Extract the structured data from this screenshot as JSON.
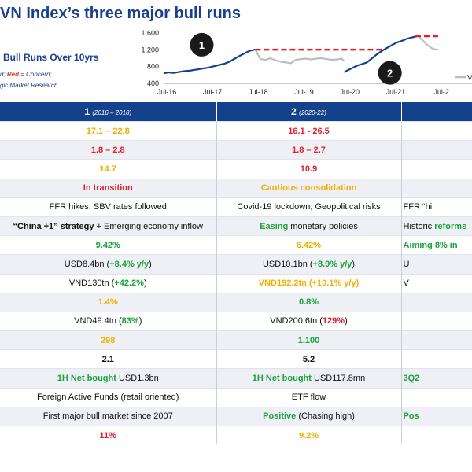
{
  "header": {
    "title": "VN Index’s three major bull runs",
    "subtitle": "Bull Runs Over 10yrs",
    "legend_note_1": "d; ",
    "legend_note_red": "Red",
    "legend_note_2": " = Concern;",
    "source": "gic Market Research"
  },
  "colors": {
    "header_bg": "#13418c",
    "series_vn": "#13418c",
    "series_other": "#bdbdbd",
    "peak_line": "#e0202a"
  },
  "chart_data": {
    "type": "line",
    "x_ticks": [
      "Jul-16",
      "Jul-17",
      "Jul-18",
      "Jul-19",
      "Jul-20",
      "Jul-21",
      "Jul-2"
    ],
    "y_ticks": [
      "1,600",
      "1,200",
      "800",
      "400"
    ],
    "ylim": [
      400,
      1600
    ],
    "series": [
      {
        "name": "",
        "role": "primary",
        "points": [
          [
            0,
            640
          ],
          [
            0.1,
            660
          ],
          [
            0.2,
            650
          ],
          [
            0.3,
            670
          ],
          [
            0.4,
            690
          ],
          [
            0.5,
            700
          ],
          [
            0.6,
            720
          ],
          [
            0.7,
            740
          ],
          [
            0.8,
            760
          ],
          [
            0.9,
            780
          ],
          [
            1.0,
            810
          ],
          [
            1.1,
            840
          ],
          [
            1.2,
            870
          ],
          [
            1.3,
            920
          ],
          [
            1.4,
            990
          ],
          [
            1.5,
            1060
          ],
          [
            1.6,
            1120
          ],
          [
            1.7,
            1180
          ],
          [
            1.8,
            1204
          ]
        ]
      },
      {
        "name": "",
        "role": "secondary",
        "points": [
          [
            1.8,
            1204
          ],
          [
            1.85,
            1100
          ],
          [
            1.9,
            980
          ],
          [
            2.0,
            960
          ],
          [
            2.1,
            1000
          ],
          [
            2.2,
            950
          ],
          [
            2.3,
            920
          ],
          [
            2.4,
            900
          ],
          [
            2.5,
            880
          ],
          [
            2.6,
            960
          ],
          [
            2.7,
            980
          ],
          [
            2.8,
            990
          ],
          [
            2.9,
            970
          ],
          [
            3.0,
            990
          ],
          [
            3.1,
            1000
          ],
          [
            3.2,
            980
          ],
          [
            3.3,
            960
          ],
          [
            3.4,
            970
          ],
          [
            3.5,
            990
          ],
          [
            3.55,
            930
          ]
        ]
      },
      {
        "name": "",
        "role": "primary",
        "points": [
          [
            3.55,
            660
          ],
          [
            3.6,
            700
          ],
          [
            3.7,
            760
          ],
          [
            3.8,
            820
          ],
          [
            3.9,
            860
          ],
          [
            4.0,
            900
          ],
          [
            4.1,
            1000
          ],
          [
            4.2,
            1100
          ],
          [
            4.3,
            1180
          ],
          [
            4.4,
            1250
          ],
          [
            4.5,
            1320
          ],
          [
            4.6,
            1380
          ],
          [
            4.7,
            1420
          ],
          [
            4.8,
            1470
          ],
          [
            4.9,
            1500
          ],
          [
            5.0,
            1530
          ]
        ]
      },
      {
        "name": "",
        "role": "secondary",
        "points": [
          [
            5.0,
            1530
          ],
          [
            5.1,
            1420
          ],
          [
            5.2,
            1300
          ],
          [
            5.3,
            1220
          ],
          [
            5.4,
            1200
          ]
        ]
      },
      {
        "name": "",
        "role": "peak",
        "points": [
          [
            1.8,
            1204
          ],
          [
            4.3,
            1204
          ]
        ]
      },
      {
        "name": "",
        "role": "peak",
        "points": [
          [
            4.95,
            1525
          ],
          [
            5.4,
            1525
          ]
        ]
      }
    ],
    "markers": [
      {
        "label": "1",
        "x": 0.75,
        "y": 1320
      },
      {
        "label": "2",
        "x": 4.45,
        "y": 650
      }
    ],
    "legend_label": "V"
  },
  "table": {
    "col1_title": "1",
    "col1_range": "(2016 – 2018)",
    "col2_title": "2",
    "col2_range": "(2020-22)",
    "rows": [
      {
        "c1": [
          [
            "17.1 – 22.8",
            "y"
          ]
        ],
        "c2": [
          [
            "16.1 - 26.5",
            "r"
          ]
        ],
        "c3": []
      },
      {
        "c1": [
          [
            "1.8 – 2.8",
            "r"
          ]
        ],
        "c2": [
          [
            "1.8 – 2.7",
            "r"
          ]
        ],
        "c3": []
      },
      {
        "c1": [
          [
            "14.7",
            "y"
          ]
        ],
        "c2": [
          [
            "10.9",
            "r"
          ]
        ],
        "c3": []
      },
      {
        "c1": [
          [
            "In transition",
            "r"
          ]
        ],
        "c2": [
          [
            "Cautious consolidation",
            "y"
          ]
        ],
        "c3": []
      },
      {
        "c1": [
          [
            "FFR hikes; SBV rates followed",
            ""
          ]
        ],
        "c2": [
          [
            "Covid-19 lockdown; Geopolitical risks",
            ""
          ]
        ],
        "c3": [
          [
            "FFR “hi",
            ""
          ]
        ]
      },
      {
        "c1": [
          [
            "“China +1” strategy",
            "b"
          ],
          [
            " + Emerging economy inflow",
            ""
          ]
        ],
        "c2": [
          [
            "Easing",
            "g"
          ],
          [
            " monetary policies",
            ""
          ]
        ],
        "c3": [
          [
            "Historic ",
            ""
          ],
          [
            "reforms",
            "g"
          ]
        ]
      },
      {
        "c1": [
          [
            "9.42%",
            "g"
          ]
        ],
        "c2": [
          [
            "6.42%",
            "y"
          ]
        ],
        "c3": [
          [
            "Aiming 8% in",
            "g"
          ]
        ]
      },
      {
        "c1": [
          [
            "USD8.4bn (",
            ""
          ],
          [
            "+8.4% y/y",
            "g"
          ],
          [
            ")",
            ""
          ]
        ],
        "c2": [
          [
            "USD10.1bn (",
            ""
          ],
          [
            "+8.9% y/y",
            "g"
          ],
          [
            ")",
            ""
          ]
        ],
        "c3": [
          [
            "U",
            ""
          ]
        ]
      },
      {
        "c1": [
          [
            "VND130tn (",
            ""
          ],
          [
            "+42.2%",
            "g"
          ],
          [
            ")",
            ""
          ]
        ],
        "c2": [
          [
            "VND192.2tn (+10.1% y/y)",
            "y"
          ]
        ],
        "c3": [
          [
            "V",
            ""
          ]
        ]
      },
      {
        "c1": [
          [
            "1.4%",
            "y"
          ]
        ],
        "c2": [
          [
            "0.8%",
            "g"
          ]
        ],
        "c3": []
      },
      {
        "c1": [
          [
            "VND49.4tn (",
            ""
          ],
          [
            "83%",
            "g"
          ],
          [
            ")",
            ""
          ]
        ],
        "c2": [
          [
            "VND200.6tn (",
            ""
          ],
          [
            "129%",
            "r"
          ],
          [
            ")",
            ""
          ]
        ],
        "c3": []
      },
      {
        "c1": [
          [
            "298",
            "y"
          ]
        ],
        "c2": [
          [
            "1,100",
            "g"
          ]
        ],
        "c3": []
      },
      {
        "c1": [
          [
            "2.1",
            "b"
          ]
        ],
        "c2": [
          [
            "5.2",
            "b"
          ]
        ],
        "c3": []
      },
      {
        "c1": [
          [
            "1H Net bought",
            "g"
          ],
          [
            " USD1.3bn",
            ""
          ]
        ],
        "c2": [
          [
            "1H Net bought",
            "g"
          ],
          [
            " USD117.8mn",
            ""
          ]
        ],
        "c3": [
          [
            "3Q2",
            "g"
          ]
        ]
      },
      {
        "c1": [
          [
            "Foreign Active Funds (retail oriented)",
            ""
          ]
        ],
        "c2": [
          [
            "ETF flow",
            ""
          ]
        ],
        "c3": []
      },
      {
        "c1": [
          [
            "First major bull market since 2007",
            ""
          ]
        ],
        "c2": [
          [
            "Positive",
            "g"
          ],
          [
            " (Chasing high)",
            ""
          ]
        ],
        "c3": [
          [
            "Pos",
            "g"
          ]
        ]
      },
      {
        "c1": [
          [
            "11%",
            "r"
          ]
        ],
        "c2": [
          [
            "9.2%",
            "y"
          ]
        ],
        "c3": []
      }
    ]
  }
}
